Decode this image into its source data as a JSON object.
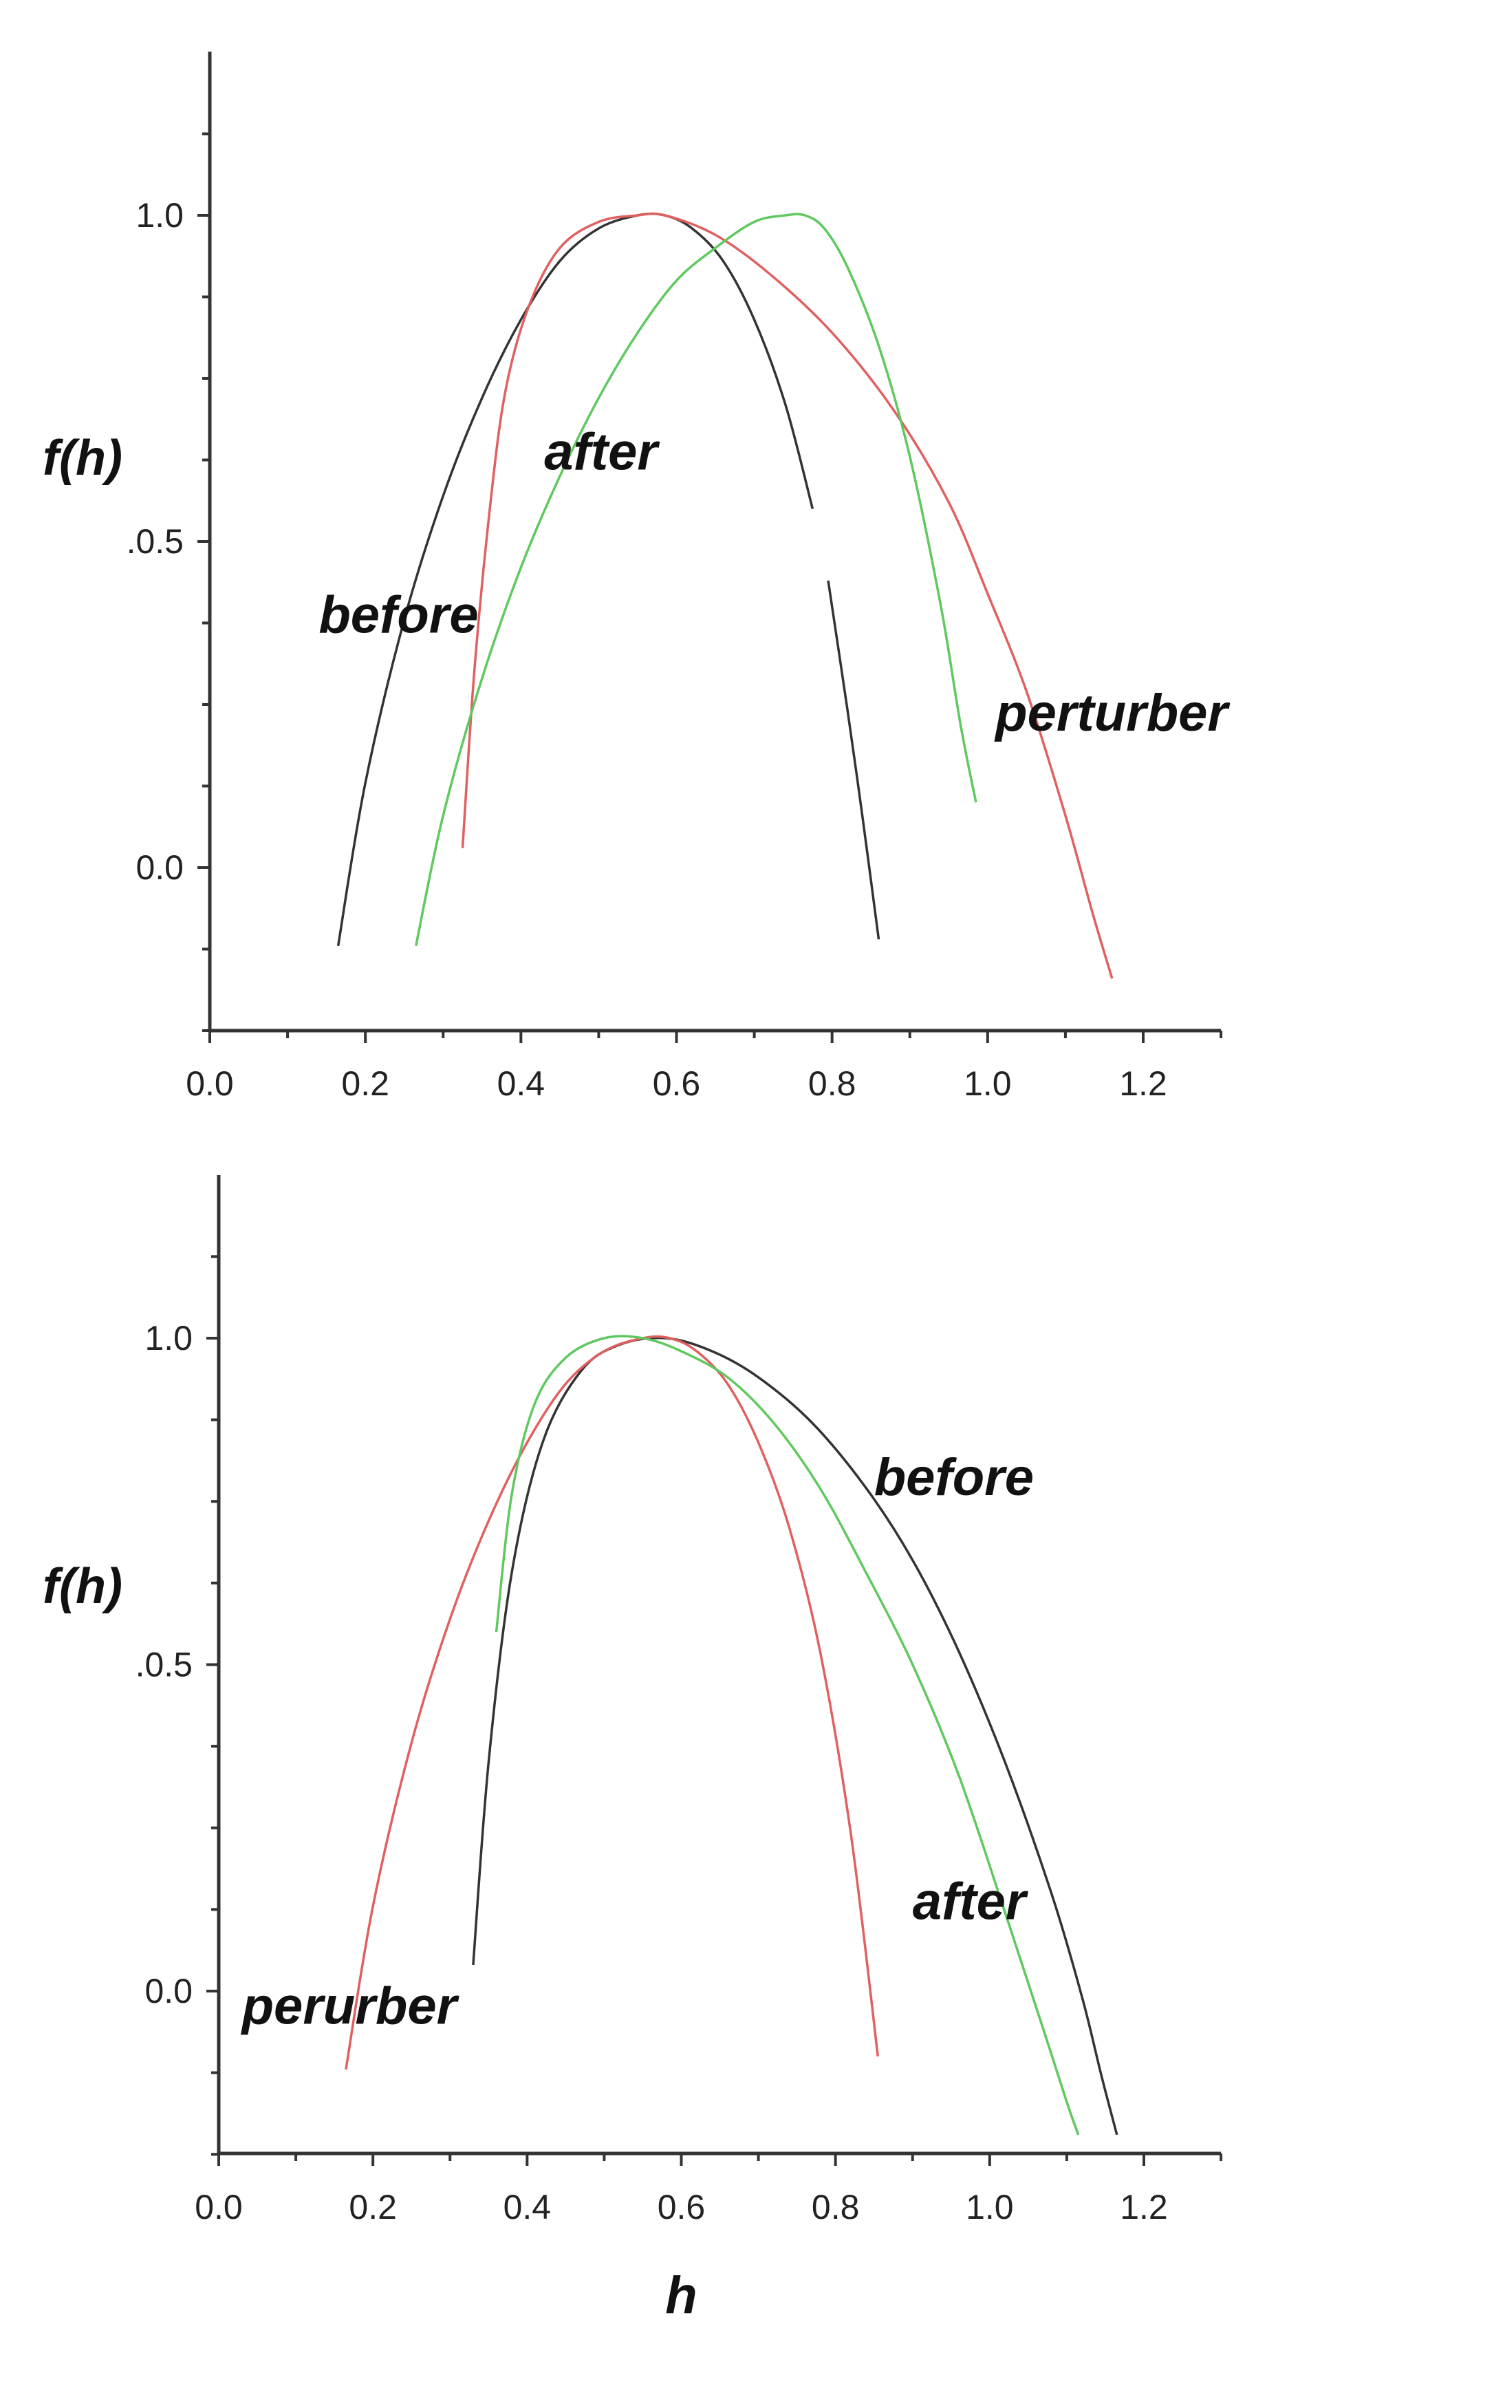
{
  "chart_data": [
    {
      "type": "line",
      "title": "",
      "xlabel": "",
      "ylabel": "f(h)",
      "xlim": [
        0.0,
        1.3
      ],
      "ylim": [
        -0.25,
        1.25
      ],
      "xticks": [
        "0.0",
        "0.2",
        "0.4",
        "0.6",
        "0.8",
        "1.0",
        "1.2"
      ],
      "yticks": [
        "0.0",
        ".0.5",
        "1.0"
      ],
      "grid": false,
      "colors": {
        "black": "#333333",
        "red": "#e06060",
        "green": "#5fc85f"
      },
      "series": [
        {
          "color": "black",
          "x": [
            0.165,
            0.2,
            0.25,
            0.3,
            0.35,
            0.4,
            0.45,
            0.5,
            0.55,
            0.585,
            0.62,
            0.66,
            0.7,
            0.74,
            0.775
          ],
          "y": [
            -0.12,
            0.13,
            0.38,
            0.57,
            0.72,
            0.84,
            0.93,
            0.98,
            1.0,
            1.0,
            0.98,
            0.93,
            0.84,
            0.71,
            0.55
          ]
        },
        {
          "color": "black",
          "x": [
            0.795,
            0.82,
            0.84,
            0.86
          ],
          "y": [
            0.44,
            0.24,
            0.07,
            -0.11
          ]
        },
        {
          "color": "red",
          "x": [
            0.325,
            0.34,
            0.36,
            0.38,
            0.41,
            0.45,
            0.5,
            0.55,
            0.585,
            0.65,
            0.72,
            0.8,
            0.88,
            0.95,
            1.0,
            1.05,
            1.1,
            1.135,
            1.16
          ],
          "y": [
            0.03,
            0.3,
            0.55,
            0.73,
            0.86,
            0.95,
            0.99,
            1.0,
            1.0,
            0.97,
            0.91,
            0.82,
            0.7,
            0.56,
            0.42,
            0.27,
            0.08,
            -0.07,
            -0.17
          ]
        },
        {
          "color": "green",
          "x": [
            0.265,
            0.3,
            0.35,
            0.4,
            0.45,
            0.5,
            0.55,
            0.6,
            0.65,
            0.7,
            0.74,
            0.765,
            0.79,
            0.82,
            0.86,
            0.9,
            0.94,
            0.965,
            0.985
          ],
          "y": [
            -0.12,
            0.08,
            0.29,
            0.46,
            0.6,
            0.72,
            0.82,
            0.9,
            0.95,
            0.99,
            1.0,
            1.0,
            0.98,
            0.92,
            0.8,
            0.63,
            0.4,
            0.22,
            0.1
          ]
        }
      ],
      "annotations": [
        {
          "text": "before",
          "x": 0.14,
          "y": 0.36
        },
        {
          "text": "after",
          "x": 0.43,
          "y": 0.61
        },
        {
          "text": "perturber",
          "x": 1.01,
          "y": 0.21
        }
      ]
    },
    {
      "type": "line",
      "title": "",
      "xlabel": "h",
      "ylabel": "f(h)",
      "xlim": [
        0.0,
        1.3
      ],
      "ylim": [
        -0.25,
        1.25
      ],
      "xticks": [
        "0.0",
        "0.2",
        "0.4",
        "0.6",
        "0.8",
        "1.0",
        "1.2"
      ],
      "yticks": [
        "0.0",
        ".0.5",
        "1.0"
      ],
      "grid": false,
      "colors": {
        "black": "#333333",
        "red": "#e06060",
        "green": "#5fc85f"
      },
      "series": [
        {
          "color": "black",
          "x": [
            0.33,
            0.35,
            0.38,
            0.42,
            0.47,
            0.52,
            0.58,
            0.64,
            0.7,
            0.77,
            0.84,
            0.9,
            0.96,
            1.02,
            1.08,
            1.12,
            1.145,
            1.165
          ],
          "y": [
            0.04,
            0.35,
            0.64,
            0.84,
            0.95,
            0.99,
            1.0,
            0.98,
            0.94,
            0.87,
            0.77,
            0.66,
            0.52,
            0.35,
            0.15,
            -0.01,
            -0.13,
            -0.22
          ]
        },
        {
          "color": "red",
          "x": [
            0.165,
            0.2,
            0.25,
            0.3,
            0.35,
            0.4,
            0.45,
            0.5,
            0.55,
            0.585,
            0.62,
            0.66,
            0.7,
            0.74,
            0.78,
            0.82,
            0.855
          ],
          "y": [
            -0.12,
            0.13,
            0.38,
            0.57,
            0.72,
            0.84,
            0.93,
            0.98,
            1.0,
            1.0,
            0.98,
            0.93,
            0.84,
            0.71,
            0.52,
            0.24,
            -0.1
          ]
        },
        {
          "color": "green",
          "x": [
            0.36,
            0.38,
            0.41,
            0.45,
            0.5,
            0.55,
            0.6,
            0.66,
            0.72,
            0.78,
            0.84,
            0.9,
            0.96,
            1.02,
            1.07,
            1.1,
            1.115
          ],
          "y": [
            0.55,
            0.76,
            0.9,
            0.97,
            1.0,
            1.0,
            0.98,
            0.94,
            0.87,
            0.77,
            0.64,
            0.5,
            0.33,
            0.12,
            -0.06,
            -0.17,
            -0.22
          ]
        }
      ],
      "annotations": [
        {
          "text": "before",
          "x": 0.85,
          "y": 0.76
        },
        {
          "text": "after",
          "x": 0.9,
          "y": 0.11
        },
        {
          "text": "perurber",
          "x": 0.03,
          "y": -0.05
        }
      ]
    }
  ]
}
